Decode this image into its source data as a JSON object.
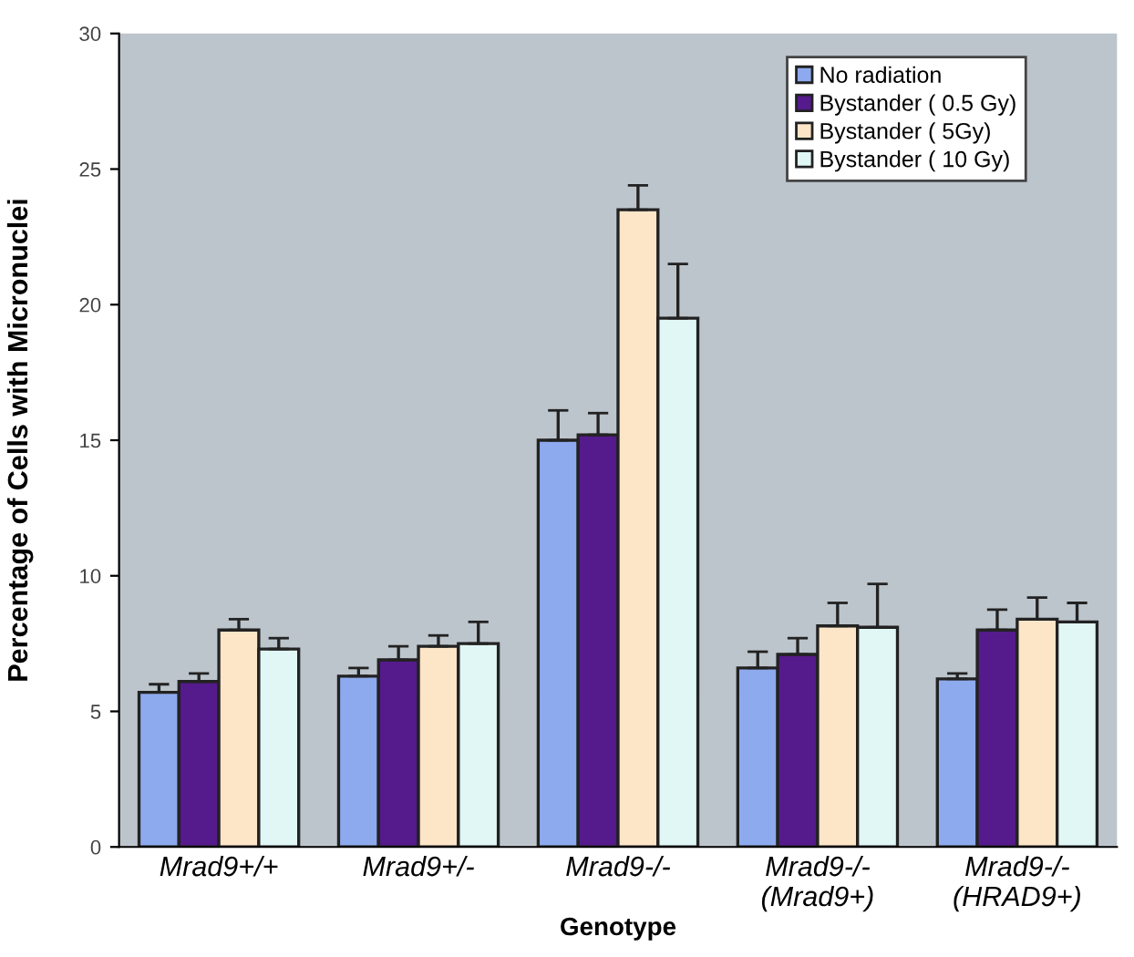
{
  "chart_data": {
    "type": "bar",
    "xlabel": "Genotype",
    "ylabel": "Percentage of Cells with Micronuclei",
    "categories": [
      "Mrad9+/+",
      "Mrad9+/-",
      "Mrad9-/-",
      "Mrad9-/-\n(Mrad9+)",
      "Mrad9-/-\n(HRAD9+)"
    ],
    "series": [
      {
        "name": "No radiation",
        "color": "#8eaaee",
        "values": [
          5.7,
          6.3,
          15.0,
          6.6,
          6.2
        ],
        "errors": [
          [
            5.7,
            6.0
          ],
          [
            6.3,
            6.6
          ],
          [
            15.0,
            16.1
          ],
          [
            6.6,
            7.2
          ],
          [
            6.2,
            6.4
          ]
        ]
      },
      {
        "name": "Bystander ( 0.5 Gy)",
        "color": "#551a8b",
        "values": [
          6.1,
          6.9,
          15.2,
          7.1,
          8.0
        ],
        "errors": [
          [
            6.1,
            6.4
          ],
          [
            6.9,
            7.4
          ],
          [
            15.2,
            16.0
          ],
          [
            7.1,
            7.7
          ],
          [
            8.0,
            8.75
          ]
        ]
      },
      {
        "name": "Bystander ( 5Gy)",
        "color": "#fde5c8",
        "values": [
          8.0,
          7.4,
          23.5,
          8.15,
          8.4
        ],
        "errors": [
          [
            8.0,
            8.4
          ],
          [
            7.4,
            7.8
          ],
          [
            23.5,
            24.4
          ],
          [
            8.15,
            9.0
          ],
          [
            8.4,
            9.2
          ]
        ]
      },
      {
        "name": "Bystander ( 10 Gy)",
        "color": "#e0f7f5",
        "values": [
          7.3,
          7.5,
          19.5,
          8.1,
          8.3
        ],
        "errors": [
          [
            7.3,
            7.7
          ],
          [
            7.5,
            8.3
          ],
          [
            19.5,
            21.5
          ],
          [
            8.1,
            9.7
          ],
          [
            8.3,
            9.0
          ]
        ]
      }
    ],
    "ylim": [
      0,
      30
    ],
    "yticks": [
      0,
      5,
      10,
      15,
      20,
      25,
      30
    ],
    "grid": false,
    "legend": "top right"
  }
}
